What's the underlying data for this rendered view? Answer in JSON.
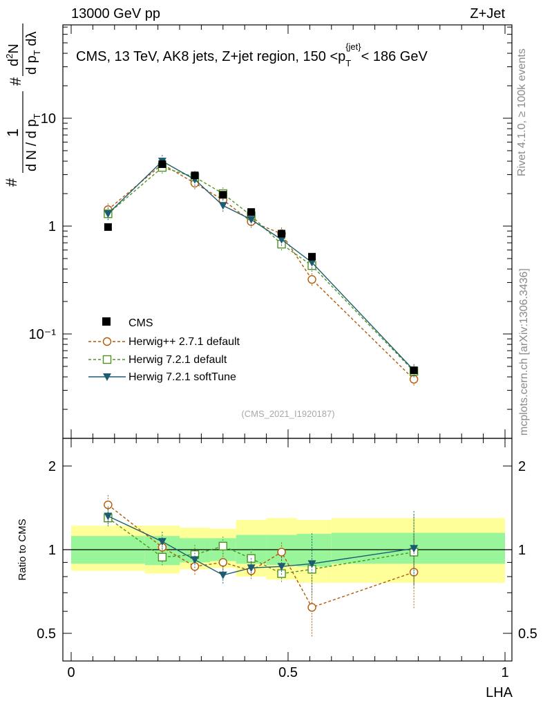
{
  "header": {
    "left": "13000 GeV pp",
    "right": "Z+Jet"
  },
  "side_labels": {
    "rivet": "Rivet 4.1.0, ≥ 100k events",
    "mcplots": "mcplots.cern.ch [arXiv:1306.3436]"
  },
  "watermark": "(CMS_2021_I1920187)",
  "chart_data": [
    {
      "type": "line",
      "title": "CMS, 13 TeV, AK8 jets, Z+jet region, 150 <p_T^{jet}< 186 GeV",
      "title_parts": {
        "main": "CMS, 13 TeV, AK8 jets, Z+jet region, 150 <p",
        "sub": "T",
        "sup": "{jet}",
        "end": "< 186 GeV"
      },
      "ylabel": "1/(dN/dp_T) d²N/(dp_T dλ)",
      "ylabel_parts": {
        "num": "1",
        "den": "d N / d p",
        "sub": "T",
        "den2_pre": "d",
        "den2_sup": "2",
        "den2": "N",
        "den3": "d p",
        "den3_sub": "T",
        "den3_end": " dλ"
      },
      "xlabel": "",
      "yscale": "log",
      "xlim": [
        0,
        1
      ],
      "ylim": [
        0.012,
        85
      ],
      "ytick_labels": [
        "10",
        "1",
        "10⁻¹"
      ],
      "ytick_values": [
        10,
        1,
        0.1
      ],
      "x_bin_edges": [
        0,
        0.17,
        0.25,
        0.32,
        0.38,
        0.45,
        0.52,
        0.6,
        1.0
      ],
      "series": [
        {
          "name": "CMS",
          "style": "data",
          "color": "#000000",
          "x": [
            0.085,
            0.21,
            0.285,
            0.35,
            0.415,
            0.485,
            0.555,
            0.79
          ],
          "y": [
            0.98,
            3.75,
            2.95,
            1.95,
            1.35,
            0.85,
            0.52,
            0.046
          ]
        },
        {
          "name": "Herwig++ 2.7.1 default",
          "style": "circle-dashed",
          "color": "#b35806",
          "x": [
            0.085,
            0.21,
            0.285,
            0.35,
            0.415,
            0.485,
            0.555,
            0.79
          ],
          "y": [
            1.42,
            3.75,
            2.5,
            1.75,
            1.1,
            0.85,
            0.32,
            0.038
          ]
        },
        {
          "name": "Herwig 7.2.1 default",
          "style": "square-dashed",
          "color": "#4d9221",
          "x": [
            0.085,
            0.21,
            0.285,
            0.35,
            0.415,
            0.485,
            0.555,
            0.79
          ],
          "y": [
            1.3,
            3.5,
            2.85,
            2.0,
            1.25,
            0.68,
            0.43,
            0.045
          ]
        },
        {
          "name": "Herwig 7.2.1 softTune",
          "style": "triangle-solid",
          "color": "#1d5c70",
          "x": [
            0.085,
            0.21,
            0.285,
            0.35,
            0.415,
            0.485,
            0.555,
            0.79
          ],
          "y": [
            1.3,
            4.0,
            2.7,
            1.55,
            1.15,
            0.75,
            0.46,
            0.046
          ]
        }
      ],
      "legend": "lower-left"
    },
    {
      "type": "line",
      "ylabel": "Ratio to CMS",
      "xlabel": "LHA",
      "yscale": "log",
      "xlim": [
        0,
        1
      ],
      "ylim": [
        0.4,
        2.5
      ],
      "ytick_labels": [
        "2",
        "1",
        "0.5"
      ],
      "ytick_values": [
        2,
        1,
        0.5
      ],
      "xtick_labels": [
        "0",
        "0.5",
        "1"
      ],
      "xtick_values": [
        0,
        0.5,
        1
      ],
      "reference": 1,
      "band_inner": [
        [
          0.89,
          1.12
        ],
        [
          0.88,
          1.12
        ],
        [
          0.9,
          1.1
        ],
        [
          0.91,
          1.1
        ],
        [
          0.89,
          1.13
        ],
        [
          0.88,
          1.13
        ],
        [
          0.87,
          1.14
        ],
        [
          0.89,
          1.15
        ]
      ],
      "band_outer": [
        [
          0.84,
          1.22
        ],
        [
          0.82,
          1.22
        ],
        [
          0.85,
          1.2
        ],
        [
          0.86,
          1.19
        ],
        [
          0.8,
          1.28
        ],
        [
          0.78,
          1.3
        ],
        [
          0.76,
          1.28
        ],
        [
          0.76,
          1.3
        ]
      ],
      "series": [
        {
          "name": "Herwig++ 2.7.1 default",
          "color": "#b35806",
          "x": [
            0.085,
            0.21,
            0.285,
            0.35,
            0.415,
            0.485,
            0.555,
            0.79
          ],
          "y": [
            1.45,
            1.02,
            0.87,
            0.9,
            0.84,
            0.98,
            0.62,
            0.83
          ]
        },
        {
          "name": "Herwig 7.2.1 default",
          "color": "#4d9221",
          "x": [
            0.085,
            0.21,
            0.285,
            0.35,
            0.415,
            0.485,
            0.555,
            0.79
          ],
          "y": [
            1.3,
            0.94,
            0.96,
            1.03,
            0.93,
            0.82,
            0.85,
            0.98
          ]
        },
        {
          "name": "Herwig 7.2.1 softTune",
          "color": "#1d5c70",
          "x": [
            0.085,
            0.21,
            0.285,
            0.35,
            0.415,
            0.485,
            0.555,
            0.79
          ],
          "y": [
            1.32,
            1.07,
            0.92,
            0.81,
            0.86,
            0.87,
            0.89,
            1.01
          ]
        }
      ]
    }
  ]
}
